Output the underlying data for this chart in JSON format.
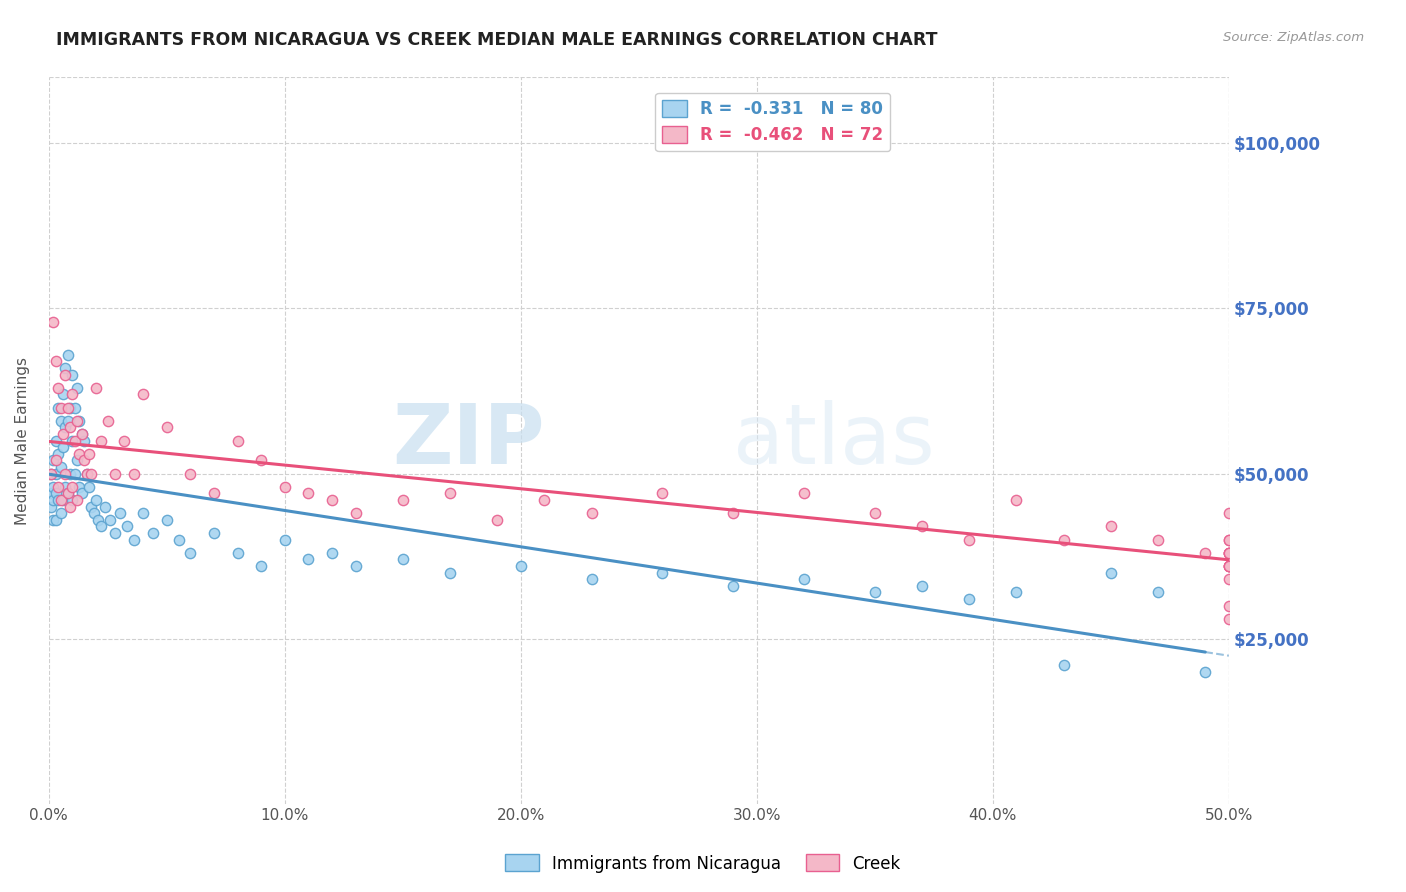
{
  "title": "IMMIGRANTS FROM NICARAGUA VS CREEK MEDIAN MALE EARNINGS CORRELATION CHART",
  "source": "Source: ZipAtlas.com",
  "ylabel": "Median Male Earnings",
  "xlim": [
    0.0,
    0.5
  ],
  "ylim": [
    0,
    110000
  ],
  "xtick_labels": [
    "0.0%",
    "10.0%",
    "20.0%",
    "30.0%",
    "40.0%",
    "50.0%"
  ],
  "xtick_vals": [
    0.0,
    0.1,
    0.2,
    0.3,
    0.4,
    0.5
  ],
  "ytick_vals": [
    25000,
    50000,
    75000,
    100000
  ],
  "ytick_labels": [
    "$25,000",
    "$50,000",
    "$75,000",
    "$100,000"
  ],
  "color_blue": "#a8d4f0",
  "color_pink": "#f4b8c8",
  "color_blue_edge": "#5ba3d0",
  "color_pink_edge": "#e86090",
  "color_blue_line": "#4a90c4",
  "color_pink_line": "#e8507a",
  "legend_label_blue": "Immigrants from Nicaragua",
  "legend_label_pink": "Creek",
  "R_blue": -0.331,
  "N_blue": 80,
  "R_pink": -0.462,
  "N_pink": 72,
  "watermark_zip": "ZIP",
  "watermark_atlas": "atlas",
  "axis_label_color": "#4472c4",
  "blue_scatter_x": [
    0.001,
    0.001,
    0.001,
    0.002,
    0.002,
    0.002,
    0.002,
    0.003,
    0.003,
    0.003,
    0.003,
    0.004,
    0.004,
    0.004,
    0.005,
    0.005,
    0.005,
    0.006,
    0.006,
    0.006,
    0.007,
    0.007,
    0.007,
    0.008,
    0.008,
    0.008,
    0.009,
    0.009,
    0.01,
    0.01,
    0.01,
    0.011,
    0.011,
    0.012,
    0.012,
    0.013,
    0.013,
    0.014,
    0.014,
    0.015,
    0.016,
    0.017,
    0.018,
    0.019,
    0.02,
    0.021,
    0.022,
    0.024,
    0.026,
    0.028,
    0.03,
    0.033,
    0.036,
    0.04,
    0.044,
    0.05,
    0.055,
    0.06,
    0.07,
    0.08,
    0.09,
    0.1,
    0.11,
    0.12,
    0.13,
    0.15,
    0.17,
    0.2,
    0.23,
    0.26,
    0.29,
    0.32,
    0.35,
    0.37,
    0.39,
    0.41,
    0.43,
    0.45,
    0.47,
    0.49
  ],
  "blue_scatter_y": [
    50000,
    47000,
    45000,
    52000,
    48000,
    46000,
    43000,
    55000,
    50000,
    47000,
    43000,
    60000,
    53000,
    46000,
    58000,
    51000,
    44000,
    62000,
    54000,
    46000,
    66000,
    57000,
    48000,
    68000,
    58000,
    47000,
    60000,
    50000,
    65000,
    55000,
    46000,
    60000,
    50000,
    63000,
    52000,
    58000,
    48000,
    56000,
    47000,
    55000,
    50000,
    48000,
    45000,
    44000,
    46000,
    43000,
    42000,
    45000,
    43000,
    41000,
    44000,
    42000,
    40000,
    44000,
    41000,
    43000,
    40000,
    38000,
    41000,
    38000,
    36000,
    40000,
    37000,
    38000,
    36000,
    37000,
    35000,
    36000,
    34000,
    35000,
    33000,
    34000,
    32000,
    33000,
    31000,
    32000,
    21000,
    35000,
    32000,
    20000
  ],
  "pink_scatter_x": [
    0.001,
    0.002,
    0.003,
    0.003,
    0.004,
    0.004,
    0.005,
    0.005,
    0.006,
    0.007,
    0.007,
    0.008,
    0.008,
    0.009,
    0.009,
    0.01,
    0.01,
    0.011,
    0.012,
    0.012,
    0.013,
    0.014,
    0.015,
    0.016,
    0.017,
    0.018,
    0.02,
    0.022,
    0.025,
    0.028,
    0.032,
    0.036,
    0.04,
    0.05,
    0.06,
    0.07,
    0.08,
    0.09,
    0.1,
    0.11,
    0.12,
    0.13,
    0.15,
    0.17,
    0.19,
    0.21,
    0.23,
    0.26,
    0.29,
    0.32,
    0.35,
    0.37,
    0.39,
    0.41,
    0.43,
    0.45,
    0.47,
    0.49,
    0.5,
    0.5,
    0.5,
    0.5,
    0.5,
    0.5,
    0.5,
    0.5,
    0.5,
    0.5,
    0.5,
    0.5,
    0.5,
    0.5
  ],
  "pink_scatter_y": [
    50000,
    73000,
    67000,
    52000,
    63000,
    48000,
    60000,
    46000,
    56000,
    65000,
    50000,
    60000,
    47000,
    57000,
    45000,
    62000,
    48000,
    55000,
    58000,
    46000,
    53000,
    56000,
    52000,
    50000,
    53000,
    50000,
    63000,
    55000,
    58000,
    50000,
    55000,
    50000,
    62000,
    57000,
    50000,
    47000,
    55000,
    52000,
    48000,
    47000,
    46000,
    44000,
    46000,
    47000,
    43000,
    46000,
    44000,
    47000,
    44000,
    47000,
    44000,
    42000,
    40000,
    46000,
    40000,
    42000,
    40000,
    38000,
    44000,
    40000,
    38000,
    36000,
    40000,
    38000,
    36000,
    38000,
    36000,
    34000,
    38000,
    30000,
    36000,
    28000
  ]
}
